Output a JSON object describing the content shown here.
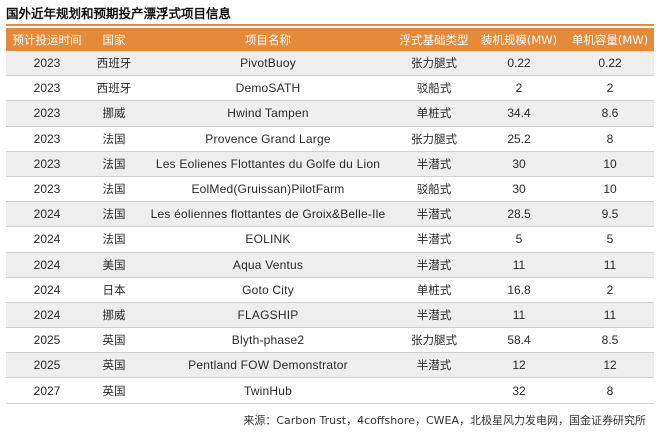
{
  "title": "国外近年规划和预期投产漂浮式项目信息",
  "headers": [
    "预计投运时间",
    "国家",
    "项目名称",
    "浮式基础类型",
    "装机规模(MW)",
    "单机容量(MW)"
  ],
  "rows": [
    [
      "2023",
      "西班牙",
      "PivotBuoy",
      "张力腿式",
      "0.22",
      "0.22"
    ],
    [
      "2023",
      "西班牙",
      "DemoSATH",
      "驳船式",
      "2",
      "2"
    ],
    [
      "2023",
      "挪威",
      "Hwind Tampen",
      "单桩式",
      "34.4",
      "8.6"
    ],
    [
      "2023",
      "法国",
      "Provence Grand Large",
      "张力腿式",
      "25.2",
      "8"
    ],
    [
      "2023",
      "法国",
      "Les Eolienes Flottantes du Golfe du Lion",
      "半潜式",
      "30",
      "10"
    ],
    [
      "2023",
      "法国",
      "EolMed(Gruissan)PilotFarm",
      "驳船式",
      "30",
      "10"
    ],
    [
      "2024",
      "法国",
      "Les éoliennes flottantes de Groix&Belle-Ile",
      "半潜式",
      "28.5",
      "9.5"
    ],
    [
      "2024",
      "法国",
      "EOLINK",
      "半潜式",
      "5",
      "5"
    ],
    [
      "2024",
      "美国",
      "Aqua Ventus",
      "半潜式",
      "11",
      "11"
    ],
    [
      "2024",
      "日本",
      "Goto City",
      "单桩式",
      "16.8",
      "2"
    ],
    [
      "2024",
      "挪威",
      "FLAGSHIP",
      "半潜式",
      "11",
      "11"
    ],
    [
      "2025",
      "英国",
      "Blyth-phase2",
      "张力腿式",
      "58.4",
      "8.5"
    ],
    [
      "2025",
      "英国",
      "Pentland FOW Demonstrator",
      "半潜式",
      "12",
      "12"
    ],
    [
      "2027",
      "英国",
      "TwinHub",
      "",
      "32",
      "8"
    ]
  ],
  "source": "来源：Carbon Trust，4coffshore，CWEA，北极星风力发电网，国金证券研究所"
}
